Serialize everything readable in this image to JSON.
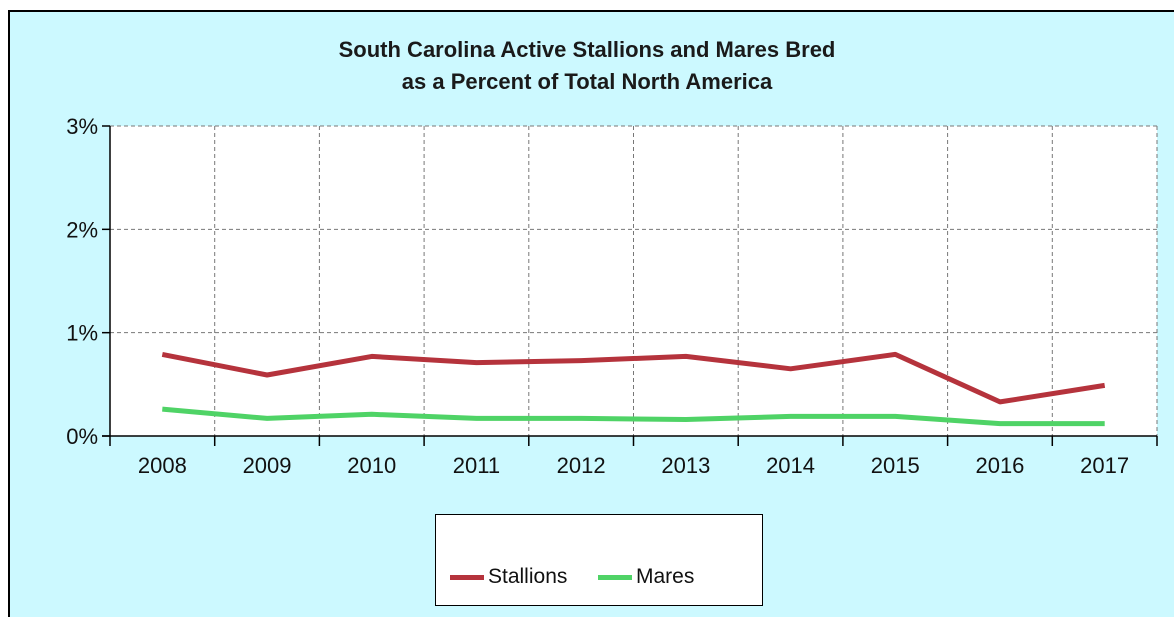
{
  "chart_data": {
    "type": "line",
    "title": [
      "South Carolina Active Stallions and Mares Bred",
      "as a Percent of Total North America"
    ],
    "xlabel": "",
    "ylabel": "",
    "categories": [
      "2008",
      "2009",
      "2010",
      "2011",
      "2012",
      "2013",
      "2014",
      "2015",
      "2016",
      "2017"
    ],
    "ylim": [
      0,
      3
    ],
    "yticks": [
      0,
      1,
      2,
      3
    ],
    "ytick_labels": [
      "0%",
      "1%",
      "2%",
      "3%"
    ],
    "grid": true,
    "legend_position": "bottom-center",
    "series": [
      {
        "name": "Stallions",
        "color": "#b5333c",
        "values": [
          0.79,
          0.59,
          0.77,
          0.71,
          0.73,
          0.77,
          0.65,
          0.79,
          0.33,
          0.49
        ]
      },
      {
        "name": "Mares",
        "color": "#4fd366",
        "values": [
          0.26,
          0.17,
          0.21,
          0.17,
          0.17,
          0.16,
          0.19,
          0.19,
          0.12,
          0.12
        ]
      }
    ]
  }
}
